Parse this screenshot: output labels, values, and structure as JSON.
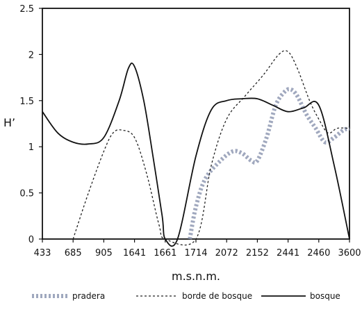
{
  "chart_data": {
    "type": "line",
    "xlabel": "m.s.n.m.",
    "ylabel": "H’",
    "categories": [
      "433",
      "685",
      "905",
      "1641",
      "1661",
      "1714",
      "2072",
      "2152",
      "2441",
      "2460",
      "3600"
    ],
    "ylim": [
      0,
      2.5
    ],
    "yticks": [
      0,
      0.5,
      1,
      1.5,
      2,
      2.5
    ],
    "ytick_labels": [
      "0",
      "0.5",
      "1",
      "1.5",
      "2",
      "2.5"
    ],
    "grid": false,
    "legend_position": "bottom",
    "series": [
      {
        "name": "pradera",
        "style": "dotted-thick",
        "color": "#8f99b3",
        "x": [
          4.8,
          5.0,
          5.3,
          5.8,
          6.2,
          6.5,
          6.8,
          7.0,
          7.3,
          7.6,
          7.9,
          8.1,
          8.3,
          8.6,
          8.9,
          9.2,
          9.5,
          9.8,
          10.0
        ],
        "y": [
          0.0,
          0.35,
          0.65,
          0.85,
          0.95,
          0.93,
          0.85,
          0.85,
          1.1,
          1.45,
          1.6,
          1.62,
          1.55,
          1.35,
          1.2,
          1.05,
          1.1,
          1.18,
          1.2
        ]
      },
      {
        "name": "borde de bosque",
        "style": "dashed",
        "color": "#222222",
        "x": [
          1.0,
          1.5,
          2.0,
          2.3,
          2.6,
          3.0,
          3.4,
          3.8,
          4.0,
          5.0,
          5.5,
          6.0,
          6.6,
          7.2,
          7.7,
          8.0,
          8.3,
          8.7,
          9.0,
          9.3,
          9.6,
          10.0
        ],
        "y": [
          0.0,
          0.5,
          0.95,
          1.15,
          1.18,
          1.1,
          0.7,
          0.15,
          0.0,
          0.0,
          0.8,
          1.3,
          1.55,
          1.78,
          2.0,
          2.03,
          1.85,
          1.5,
          1.3,
          1.15,
          1.2,
          1.2
        ]
      },
      {
        "name": "bosque",
        "style": "solid",
        "color": "#111111",
        "x": [
          0.0,
          0.5,
          1.0,
          1.5,
          2.0,
          2.5,
          2.8,
          3.0,
          3.3,
          3.6,
          3.9,
          4.0,
          4.4,
          5.0,
          5.5,
          6.0,
          6.5,
          7.0,
          7.5,
          8.0,
          8.5,
          9.0,
          9.5,
          10.0
        ],
        "y": [
          1.38,
          1.15,
          1.05,
          1.03,
          1.1,
          1.5,
          1.85,
          1.87,
          1.5,
          0.9,
          0.25,
          0.0,
          0.0,
          0.9,
          1.4,
          1.5,
          1.52,
          1.52,
          1.45,
          1.38,
          1.42,
          1.45,
          0.8,
          0.0
        ]
      }
    ]
  }
}
